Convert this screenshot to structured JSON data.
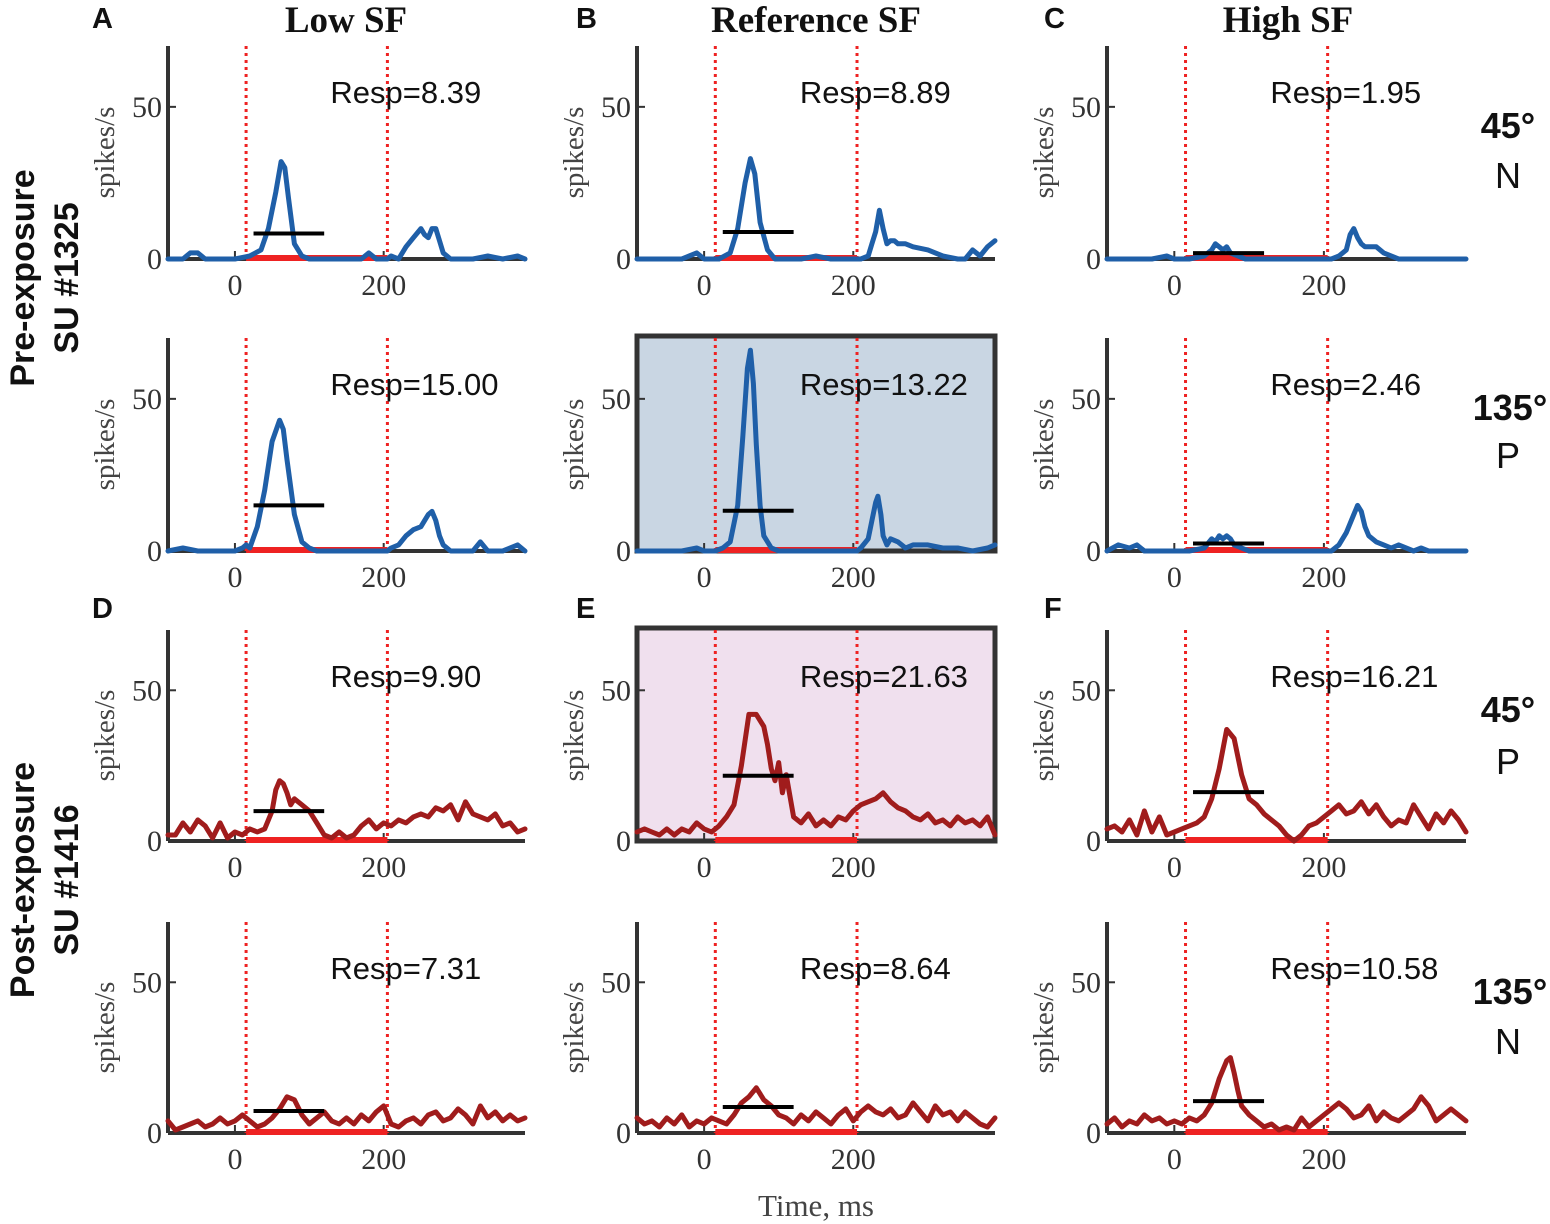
{
  "figure": {
    "x_axis_label": "Time, ms",
    "y_axis_label": "spikes/s",
    "column_titles": [
      "Low SF",
      "Reference SF",
      "High SF"
    ],
    "panel_letters": [
      "A",
      "B",
      "C",
      "D",
      "E",
      "F"
    ],
    "row_groups": [
      {
        "label_line1": "Pre-exposure",
        "label_line2": "SU #1325"
      },
      {
        "label_line1": "Post-exposure",
        "label_line2": "SU #1416"
      }
    ],
    "row_labels": [
      {
        "orientation": "45°",
        "condition": "N"
      },
      {
        "orientation": "135°",
        "condition": "P"
      },
      {
        "orientation": "45°",
        "condition": "P"
      },
      {
        "orientation": "135°",
        "condition": "N"
      }
    ]
  },
  "chart_data": {
    "type": "line",
    "x_ticks": [
      0,
      200
    ],
    "y_ticks": [
      0,
      50
    ],
    "xlim": [
      -90,
      390
    ],
    "ylim": [
      0,
      70
    ],
    "stim_onset_line_ms": 15,
    "stim_offset_line_ms": 205,
    "stim_bar_ms": [
      15,
      205
    ],
    "resp_window_ms": [
      25,
      120
    ],
    "colors": {
      "pre": "#1f5fa8",
      "post": "#a01c1c",
      "stim": "#ee2222",
      "axis": "#333333",
      "mean": "#000000",
      "ref_pre_bg": "#c9d6e3",
      "ref_post_bg": "#f0e0ee"
    },
    "panels": [
      {
        "id": "A1",
        "row": 0,
        "col": 0,
        "series": "pre",
        "resp_label": "Resp=8.39",
        "resp": 8.39,
        "x": [
          -90,
          -70,
          -60,
          -50,
          -40,
          -20,
          0,
          20,
          35,
          45,
          55,
          62,
          67,
          72,
          80,
          90,
          100,
          110,
          130,
          150,
          170,
          180,
          190,
          200,
          205,
          210,
          220,
          230,
          240,
          250,
          255,
          260,
          265,
          270,
          275,
          280,
          290,
          300,
          320,
          340,
          360,
          380,
          390
        ],
        "y": [
          0,
          0,
          2,
          2,
          0,
          0,
          0,
          1,
          3,
          10,
          22,
          32,
          30,
          20,
          5,
          1,
          0,
          0,
          0,
          0,
          0,
          2,
          0,
          0,
          0,
          1,
          0,
          4,
          7,
          10,
          8,
          7,
          10,
          10,
          6,
          2,
          0,
          0,
          0,
          1,
          0,
          1,
          0
        ]
      },
      {
        "id": "B1",
        "row": 0,
        "col": 1,
        "series": "pre",
        "resp_label": "Resp=8.89",
        "resp": 8.89,
        "x": [
          -90,
          -70,
          -50,
          -30,
          -20,
          -10,
          0,
          20,
          35,
          45,
          55,
          62,
          68,
          75,
          85,
          95,
          110,
          130,
          150,
          170,
          190,
          200,
          205,
          210,
          220,
          225,
          230,
          235,
          240,
          245,
          250,
          255,
          260,
          270,
          280,
          300,
          320,
          340,
          350,
          360,
          370,
          380,
          390
        ],
        "y": [
          0,
          0,
          0,
          0,
          1,
          2,
          0,
          0,
          2,
          10,
          25,
          33,
          28,
          12,
          3,
          0,
          0,
          0,
          1,
          0,
          0,
          0,
          0,
          0,
          1,
          5,
          9,
          16,
          10,
          5,
          6,
          6,
          5,
          5,
          4,
          3,
          1,
          0,
          0,
          3,
          1,
          4,
          6
        ]
      },
      {
        "id": "C1",
        "row": 0,
        "col": 2,
        "series": "pre",
        "resp_label": "Resp=1.95",
        "resp": 1.95,
        "x": [
          -90,
          -70,
          -50,
          -30,
          -10,
          0,
          20,
          40,
          50,
          55,
          60,
          65,
          70,
          75,
          85,
          95,
          110,
          130,
          150,
          170,
          190,
          200,
          205,
          210,
          220,
          230,
          235,
          240,
          245,
          250,
          255,
          260,
          270,
          280,
          300,
          320,
          340,
          360,
          390
        ],
        "y": [
          0,
          0,
          0,
          0,
          1,
          0,
          0,
          1,
          3,
          5,
          4,
          3,
          4,
          2,
          1,
          0,
          0,
          0,
          0,
          0,
          0,
          0,
          0,
          0,
          1,
          3,
          8,
          10,
          7,
          5,
          4,
          4,
          4,
          2,
          0,
          0,
          0,
          0,
          0
        ]
      },
      {
        "id": "A2",
        "row": 1,
        "col": 0,
        "series": "pre",
        "resp_label": "Resp=15.00",
        "resp": 15.0,
        "x": [
          -90,
          -70,
          -50,
          -30,
          -10,
          0,
          10,
          15,
          20,
          30,
          40,
          50,
          60,
          65,
          70,
          80,
          90,
          100,
          110,
          130,
          150,
          170,
          190,
          200,
          205,
          210,
          220,
          230,
          240,
          250,
          255,
          260,
          265,
          270,
          275,
          280,
          290,
          300,
          320,
          330,
          340,
          350,
          360,
          380,
          390
        ],
        "y": [
          0,
          1,
          0,
          0,
          0,
          0,
          1,
          2,
          1,
          8,
          20,
          36,
          43,
          40,
          30,
          12,
          3,
          1,
          0,
          0,
          0,
          0,
          0,
          0,
          0,
          1,
          2,
          5,
          7,
          8,
          10,
          12,
          13,
          10,
          5,
          2,
          0,
          0,
          0,
          3,
          0,
          0,
          0,
          2,
          0
        ]
      },
      {
        "id": "B2",
        "row": 1,
        "col": 1,
        "series": "pre",
        "resp_label": "Resp=13.22",
        "resp": 13.22,
        "highlight": "ref_pre_bg",
        "x": [
          -90,
          -70,
          -50,
          -30,
          -10,
          0,
          15,
          25,
          35,
          45,
          52,
          58,
          62,
          66,
          70,
          75,
          80,
          90,
          100,
          110,
          130,
          150,
          170,
          190,
          200,
          205,
          210,
          220,
          225,
          230,
          233,
          237,
          240,
          245,
          250,
          260,
          270,
          280,
          300,
          320,
          340,
          360,
          380,
          390
        ],
        "y": [
          0,
          0,
          0,
          0,
          1,
          0,
          0,
          1,
          3,
          15,
          38,
          60,
          66,
          55,
          35,
          15,
          5,
          1,
          0,
          0,
          0,
          0,
          0,
          0,
          0,
          0,
          1,
          4,
          10,
          16,
          18,
          12,
          5,
          2,
          4,
          3,
          1,
          2,
          2,
          1,
          1,
          0,
          1,
          2
        ]
      },
      {
        "id": "C2",
        "row": 1,
        "col": 2,
        "series": "pre",
        "resp_label": "Resp=2.46",
        "resp": 2.46,
        "x": [
          -90,
          -75,
          -60,
          -50,
          -40,
          -20,
          0,
          20,
          40,
          50,
          55,
          60,
          65,
          70,
          75,
          80,
          90,
          100,
          120,
          140,
          160,
          180,
          200,
          205,
          210,
          220,
          230,
          240,
          245,
          250,
          255,
          260,
          270,
          280,
          290,
          300,
          320,
          330,
          340,
          360,
          390
        ],
        "y": [
          0,
          2,
          1,
          2,
          0,
          0,
          0,
          0,
          1,
          4,
          3,
          5,
          4,
          5,
          4,
          2,
          1,
          0,
          0,
          0,
          0,
          0,
          0,
          0,
          0,
          2,
          6,
          12,
          15,
          13,
          8,
          5,
          3,
          2,
          1,
          2,
          0,
          1,
          0,
          0,
          0
        ]
      },
      {
        "id": "D1",
        "row": 2,
        "col": 0,
        "series": "post",
        "resp_label": "Resp=9.90",
        "resp": 9.9,
        "x": [
          -90,
          -80,
          -70,
          -60,
          -50,
          -40,
          -30,
          -20,
          -10,
          0,
          10,
          20,
          30,
          40,
          50,
          55,
          60,
          65,
          70,
          75,
          80,
          90,
          100,
          110,
          120,
          130,
          140,
          150,
          160,
          170,
          180,
          190,
          200,
          210,
          220,
          230,
          240,
          250,
          260,
          270,
          280,
          290,
          300,
          310,
          320,
          330,
          340,
          350,
          360,
          370,
          380,
          390
        ],
        "y": [
          2,
          2,
          6,
          3,
          7,
          5,
          1,
          6,
          1,
          3,
          2,
          4,
          3,
          4,
          10,
          17,
          20,
          19,
          16,
          12,
          14,
          12,
          10,
          6,
          2,
          1,
          3,
          1,
          2,
          5,
          7,
          4,
          6,
          5,
          7,
          6,
          8,
          9,
          8,
          11,
          10,
          12,
          7,
          13,
          9,
          8,
          7,
          9,
          5,
          6,
          3,
          4
        ]
      },
      {
        "id": "E1",
        "row": 2,
        "col": 1,
        "series": "post",
        "resp_label": "Resp=21.63",
        "resp": 21.63,
        "highlight": "ref_post_bg",
        "x": [
          -90,
          -80,
          -70,
          -60,
          -50,
          -40,
          -30,
          -20,
          -10,
          0,
          10,
          20,
          30,
          40,
          50,
          60,
          70,
          80,
          85,
          90,
          95,
          100,
          105,
          110,
          120,
          130,
          140,
          150,
          160,
          170,
          180,
          190,
          200,
          210,
          220,
          230,
          240,
          250,
          260,
          270,
          280,
          290,
          300,
          310,
          320,
          330,
          340,
          350,
          360,
          370,
          380,
          390
        ],
        "y": [
          3,
          4,
          3,
          2,
          4,
          2,
          4,
          3,
          6,
          4,
          3,
          5,
          8,
          12,
          25,
          42,
          42,
          38,
          32,
          24,
          20,
          26,
          16,
          22,
          8,
          6,
          9,
          5,
          7,
          5,
          8,
          7,
          10,
          12,
          13,
          14,
          16,
          13,
          11,
          10,
          8,
          7,
          9,
          6,
          7,
          5,
          8,
          6,
          7,
          5,
          8,
          2
        ]
      },
      {
        "id": "F1",
        "row": 2,
        "col": 2,
        "series": "post",
        "resp_label": "Resp=16.21",
        "resp": 16.21,
        "x": [
          -90,
          -80,
          -70,
          -60,
          -50,
          -40,
          -30,
          -20,
          -10,
          0,
          10,
          20,
          30,
          40,
          50,
          60,
          70,
          80,
          90,
          100,
          110,
          120,
          130,
          140,
          150,
          160,
          170,
          180,
          190,
          200,
          210,
          220,
          230,
          240,
          250,
          260,
          270,
          280,
          290,
          300,
          310,
          320,
          330,
          340,
          350,
          360,
          370,
          380,
          390
        ],
        "y": [
          4,
          5,
          3,
          7,
          2,
          10,
          3,
          8,
          2,
          3,
          4,
          5,
          6,
          8,
          14,
          24,
          37,
          34,
          22,
          14,
          12,
          9,
          7,
          5,
          2,
          0,
          2,
          5,
          6,
          8,
          10,
          12,
          9,
          10,
          13,
          9,
          12,
          8,
          5,
          7,
          6,
          12,
          8,
          4,
          9,
          6,
          10,
          7,
          3
        ]
      },
      {
        "id": "D2",
        "row": 3,
        "col": 0,
        "series": "post",
        "resp_label": "Resp=7.31",
        "resp": 7.31,
        "x": [
          -90,
          -80,
          -70,
          -60,
          -50,
          -40,
          -30,
          -20,
          -10,
          0,
          10,
          20,
          30,
          40,
          50,
          60,
          70,
          80,
          90,
          100,
          110,
          120,
          130,
          140,
          150,
          160,
          170,
          180,
          190,
          200,
          210,
          220,
          230,
          240,
          250,
          260,
          270,
          280,
          290,
          300,
          310,
          320,
          330,
          340,
          350,
          360,
          370,
          380,
          390
        ],
        "y": [
          4,
          1,
          2,
          3,
          4,
          2,
          3,
          5,
          3,
          4,
          6,
          4,
          2,
          3,
          5,
          8,
          12,
          11,
          6,
          3,
          5,
          7,
          4,
          3,
          5,
          3,
          6,
          4,
          7,
          9,
          3,
          2,
          4,
          5,
          3,
          6,
          7,
          4,
          5,
          8,
          6,
          3,
          9,
          5,
          7,
          4,
          6,
          4,
          5
        ]
      },
      {
        "id": "E2",
        "row": 3,
        "col": 1,
        "series": "post",
        "resp_label": "Resp=8.64",
        "resp": 8.64,
        "x": [
          -90,
          -80,
          -70,
          -60,
          -50,
          -40,
          -30,
          -20,
          -10,
          0,
          10,
          20,
          30,
          40,
          50,
          60,
          70,
          80,
          90,
          100,
          110,
          120,
          130,
          140,
          150,
          160,
          170,
          180,
          190,
          200,
          210,
          220,
          230,
          240,
          250,
          260,
          270,
          280,
          290,
          300,
          310,
          320,
          330,
          340,
          350,
          360,
          370,
          380,
          390
        ],
        "y": [
          5,
          3,
          4,
          2,
          5,
          3,
          6,
          2,
          4,
          3,
          5,
          4,
          3,
          6,
          10,
          12,
          15,
          11,
          9,
          6,
          5,
          3,
          6,
          4,
          7,
          5,
          3,
          6,
          8,
          4,
          7,
          9,
          7,
          6,
          8,
          5,
          6,
          10,
          7,
          4,
          9,
          6,
          7,
          4,
          7,
          5,
          3,
          2,
          5
        ]
      },
      {
        "id": "F2",
        "row": 3,
        "col": 2,
        "series": "post",
        "resp_label": "Resp=10.58",
        "resp": 10.58,
        "x": [
          -90,
          -80,
          -70,
          -60,
          -50,
          -40,
          -30,
          -20,
          -10,
          0,
          10,
          20,
          30,
          40,
          50,
          60,
          70,
          75,
          80,
          85,
          90,
          100,
          110,
          120,
          130,
          140,
          150,
          160,
          170,
          180,
          190,
          200,
          210,
          220,
          230,
          240,
          250,
          260,
          270,
          280,
          290,
          300,
          310,
          320,
          330,
          340,
          350,
          360,
          370,
          380,
          390
        ],
        "y": [
          3,
          5,
          2,
          4,
          3,
          6,
          4,
          5,
          3,
          4,
          3,
          5,
          4,
          6,
          10,
          18,
          24,
          25,
          20,
          14,
          9,
          6,
          4,
          2,
          3,
          1,
          2,
          1,
          5,
          2,
          4,
          6,
          8,
          10,
          8,
          5,
          6,
          9,
          4,
          7,
          5,
          4,
          6,
          8,
          12,
          9,
          4,
          6,
          8,
          6,
          4
        ]
      }
    ]
  }
}
